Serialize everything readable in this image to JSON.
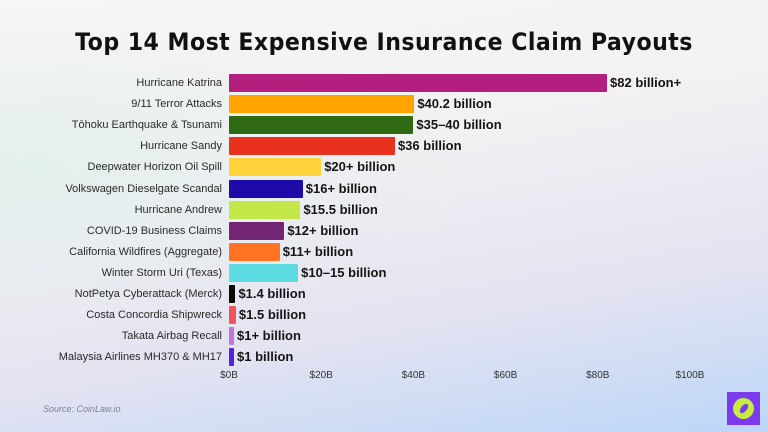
{
  "title": "Top 14 Most Expensive Insurance Claim Payouts",
  "source": "Source: CoinLaw.io",
  "logo": {
    "icon": "compass-icon",
    "bg": "#7c3aed",
    "fg": "#c6ec3e"
  },
  "chart_data": {
    "type": "bar",
    "orientation": "horizontal",
    "title": "Top 14 Most Expensive Insurance Claim Payouts",
    "xlabel": "",
    "ylabel": "",
    "xlim": [
      0,
      100
    ],
    "x_ticks": [
      "$0B",
      "$20B",
      "$40B",
      "$60B",
      "$80B",
      "$100B"
    ],
    "grid": false,
    "legend": "none",
    "categories": [
      "Hurricane Katrina",
      "9/11 Terror Attacks",
      "Tōhoku Earthquake & Tsunami",
      "Hurricane Sandy",
      "Deepwater Horizon Oil Spill",
      "Volkswagen Dieselgate Scandal",
      "Hurricane Andrew",
      "COVID-19 Business Claims",
      "California Wildfires (Aggregate)",
      "Winter Storm Uri (Texas)",
      "NotPetya Cyberattack (Merck)",
      "Costa Concordia Shipwreck",
      "Takata Airbag Recall",
      "Malaysia Airlines MH370 & MH17"
    ],
    "values": [
      82,
      40.2,
      40,
      36,
      20,
      16,
      15.5,
      12,
      11,
      15,
      1.4,
      1.5,
      1,
      1
    ],
    "value_labels": [
      "$82 billion+",
      "$40.2 billion",
      "$35–40 billion",
      "$36 billion",
      "$20+ billion",
      "$16+ billion",
      "$15.5 billion",
      "$12+ billion",
      "$11+ billion",
      "$10–15 billion",
      "$1.4 billion",
      "$1.5 billion",
      "$1+ billion",
      "$1 billion"
    ],
    "colors": [
      "#b21f7f",
      "#ffa300",
      "#2d6a12",
      "#e8321e",
      "#ffd23a",
      "#1d0aa8",
      "#c4e84a",
      "#742475",
      "#ff7322",
      "#5ddde3",
      "#0a0a0a",
      "#f2545b",
      "#c273e3",
      "#5a1fe0"
    ]
  }
}
